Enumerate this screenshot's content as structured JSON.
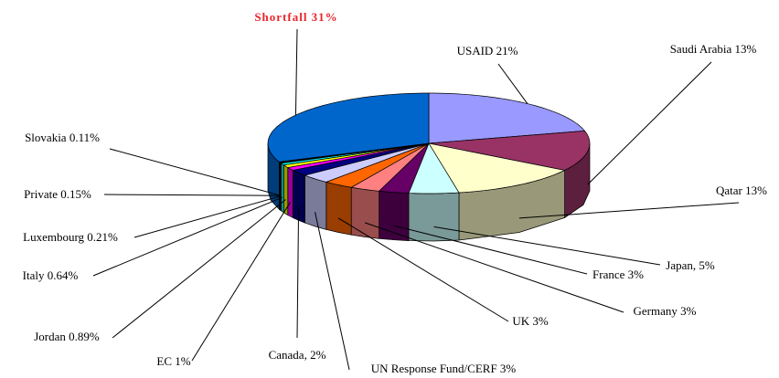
{
  "chart_data": {
    "type": "pie3d",
    "categories": [
      "USAID 21%",
      "Saudi Arabia 13%",
      "Qatar 13%",
      "Japan, 5%",
      "France 3%",
      "Germany 3%",
      "UK 3%",
      "UN Response Fund/CERF 3%",
      "Canada, 2%",
      "EC 1%",
      "Jordan 0.89%",
      "Italy 0.64%",
      "Luxembourg 0.21%",
      "Private 0.15%",
      "Slovakia 0.11%",
      "Shortfall 31%"
    ],
    "values": [
      21,
      13,
      13,
      5,
      3,
      3,
      3,
      3,
      2,
      1,
      0.89,
      0.64,
      0.21,
      0.15,
      0.11,
      31
    ],
    "colors": [
      "#9999ff",
      "#993366",
      "#ffffcc",
      "#ccffff",
      "#660066",
      "#ff8080",
      "#ff6600",
      "#ccccff",
      "#000080",
      "#ff00ff",
      "#ffff00",
      "#00ffff",
      "#800080",
      "#800000",
      "#008080",
      "#0066cc"
    ],
    "highlight_color": "#e8262b"
  }
}
